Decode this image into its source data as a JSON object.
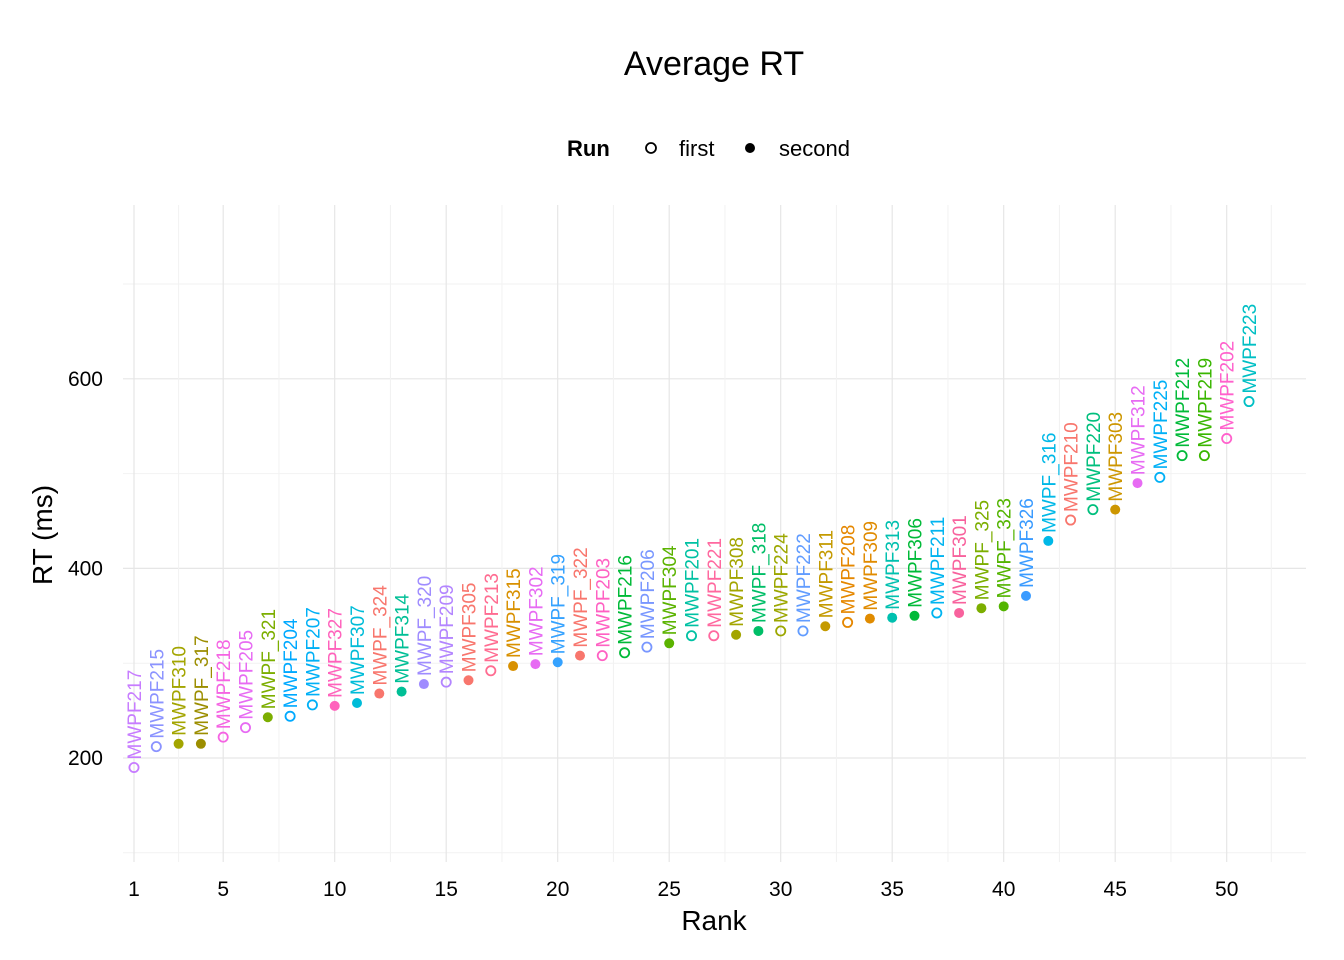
{
  "chart_data": {
    "type": "scatter",
    "title": "Average RT",
    "xlabel": "Rank",
    "ylabel": "RT (ms)",
    "xlim": [
      0.5,
      52.5
    ],
    "ylim": [
      90,
      730
    ],
    "x_ticks": [
      1,
      5,
      10,
      15,
      20,
      25,
      30,
      35,
      40,
      45,
      50
    ],
    "y_ticks": [
      200,
      400,
      600
    ],
    "grid": true,
    "legend": {
      "title": "Run",
      "placement": "top",
      "entries": [
        {
          "label": "first",
          "shape": "open-circle"
        },
        {
          "label": "second",
          "shape": "filled-circle"
        }
      ]
    },
    "points": [
      {
        "rank": 1,
        "rt": 190,
        "label": "MWPF217",
        "run": "first",
        "color": "#C77CFF"
      },
      {
        "rank": 2,
        "rt": 212,
        "label": "MWPF215",
        "run": "first",
        "color": "#8B93FF"
      },
      {
        "rank": 3,
        "rt": 215,
        "label": "MWPF310",
        "run": "second",
        "color": "#A3A500"
      },
      {
        "rank": 4,
        "rt": 215,
        "label": "MWPF_317",
        "run": "second",
        "color": "#9C8E00"
      },
      {
        "rank": 5,
        "rt": 222,
        "label": "MWPF218",
        "run": "first",
        "color": "#F564E3"
      },
      {
        "rank": 6,
        "rt": 232,
        "label": "MWPF205",
        "run": "first",
        "color": "#E76BF3"
      },
      {
        "rank": 7,
        "rt": 243,
        "label": "MWPF_321",
        "run": "second",
        "color": "#7CAE00"
      },
      {
        "rank": 8,
        "rt": 244,
        "label": "MWPF204",
        "run": "first",
        "color": "#00A9FF"
      },
      {
        "rank": 9,
        "rt": 256,
        "label": "MWPF207",
        "run": "first",
        "color": "#00B0F6"
      },
      {
        "rank": 10,
        "rt": 255,
        "label": "MWPF327",
        "run": "second",
        "color": "#FF62BC"
      },
      {
        "rank": 11,
        "rt": 258,
        "label": "MWPF307",
        "run": "second",
        "color": "#00BCD8"
      },
      {
        "rank": 12,
        "rt": 268,
        "label": "MWPF_324",
        "run": "second",
        "color": "#F8766D"
      },
      {
        "rank": 13,
        "rt": 270,
        "label": "MWPF314",
        "run": "second",
        "color": "#00BF96"
      },
      {
        "rank": 14,
        "rt": 278,
        "label": "MWPF_320",
        "run": "second",
        "color": "#9F8CFF"
      },
      {
        "rank": 15,
        "rt": 280,
        "label": "MWPF209",
        "run": "first",
        "color": "#B385FF"
      },
      {
        "rank": 16,
        "rt": 282,
        "label": "MWPF305",
        "run": "second",
        "color": "#F8766D"
      },
      {
        "rank": 17,
        "rt": 292,
        "label": "MWPF213",
        "run": "first",
        "color": "#FF6C91"
      },
      {
        "rank": 18,
        "rt": 297,
        "label": "MWPF315",
        "run": "second",
        "color": "#D89000"
      },
      {
        "rank": 19,
        "rt": 299,
        "label": "MWPF302",
        "run": "second",
        "color": "#E76BF3"
      },
      {
        "rank": 20,
        "rt": 301,
        "label": "MWPF_319",
        "run": "second",
        "color": "#35A2FF"
      },
      {
        "rank": 21,
        "rt": 308,
        "label": "MWPF_322",
        "run": "second",
        "color": "#F8766D"
      },
      {
        "rank": 22,
        "rt": 308,
        "label": "MWPF203",
        "run": "first",
        "color": "#FF61C3"
      },
      {
        "rank": 23,
        "rt": 311,
        "label": "MWPF216",
        "run": "first",
        "color": "#00BA38"
      },
      {
        "rank": 24,
        "rt": 317,
        "label": "MWPF206",
        "run": "first",
        "color": "#7997FF"
      },
      {
        "rank": 25,
        "rt": 321,
        "label": "MWPF304",
        "run": "second",
        "color": "#5BB300"
      },
      {
        "rank": 26,
        "rt": 329,
        "label": "MWPF201",
        "run": "first",
        "color": "#00C1A3"
      },
      {
        "rank": 27,
        "rt": 329,
        "label": "MWPF221",
        "run": "first",
        "color": "#FF689F"
      },
      {
        "rank": 28,
        "rt": 330,
        "label": "MWPF308",
        "run": "second",
        "color": "#A3A500"
      },
      {
        "rank": 29,
        "rt": 334,
        "label": "MWPF_318",
        "run": "second",
        "color": "#00BE67"
      },
      {
        "rank": 30,
        "rt": 334,
        "label": "MWPF224",
        "run": "first",
        "color": "#9CA700"
      },
      {
        "rank": 31,
        "rt": 334,
        "label": "MWPF222",
        "run": "first",
        "color": "#619CFF"
      },
      {
        "rank": 32,
        "rt": 339,
        "label": "MWPF311",
        "run": "second",
        "color": "#C49A00"
      },
      {
        "rank": 33,
        "rt": 343,
        "label": "MWPF208",
        "run": "first",
        "color": "#E58700"
      },
      {
        "rank": 34,
        "rt": 347,
        "label": "MWPF309",
        "run": "second",
        "color": "#E08B00"
      },
      {
        "rank": 35,
        "rt": 348,
        "label": "MWPF313",
        "run": "second",
        "color": "#00C0AF"
      },
      {
        "rank": 36,
        "rt": 350,
        "label": "MWPF306",
        "run": "second",
        "color": "#00BA38"
      },
      {
        "rank": 37,
        "rt": 353,
        "label": "MWPF211",
        "run": "first",
        "color": "#00B4F0"
      },
      {
        "rank": 38,
        "rt": 353,
        "label": "MWPF301",
        "run": "second",
        "color": "#F8629D"
      },
      {
        "rank": 39,
        "rt": 358,
        "label": "MWPF_325",
        "run": "second",
        "color": "#7CAE00"
      },
      {
        "rank": 40,
        "rt": 360,
        "label": "MWPF_323",
        "run": "second",
        "color": "#53B400"
      },
      {
        "rank": 41,
        "rt": 371,
        "label": "MWPF326",
        "run": "second",
        "color": "#3A9BFF"
      },
      {
        "rank": 42,
        "rt": 429,
        "label": "MWPF_316",
        "run": "second",
        "color": "#00B8E7"
      },
      {
        "rank": 43,
        "rt": 451,
        "label": "MWPF210",
        "run": "first",
        "color": "#F8766D"
      },
      {
        "rank": 44,
        "rt": 462,
        "label": "MWPF220",
        "run": "first",
        "color": "#00BF7D"
      },
      {
        "rank": 45,
        "rt": 462,
        "label": "MWPF303",
        "run": "second",
        "color": "#CD9600"
      },
      {
        "rank": 46,
        "rt": 490,
        "label": "MWPF312",
        "run": "second",
        "color": "#E76BF3"
      },
      {
        "rank": 47,
        "rt": 496,
        "label": "MWPF225",
        "run": "first",
        "color": "#00B0F6"
      },
      {
        "rank": 48,
        "rt": 519,
        "label": "MWPF212",
        "run": "first",
        "color": "#00BA38"
      },
      {
        "rank": 49,
        "rt": 519,
        "label": "MWPF219",
        "run": "first",
        "color": "#39B600"
      },
      {
        "rank": 50,
        "rt": 537,
        "label": "MWPF202",
        "run": "first",
        "color": "#FF61CC"
      },
      {
        "rank": 51,
        "rt": 576,
        "label": "MWPF223",
        "run": "first",
        "color": "#00BFC4"
      }
    ]
  }
}
